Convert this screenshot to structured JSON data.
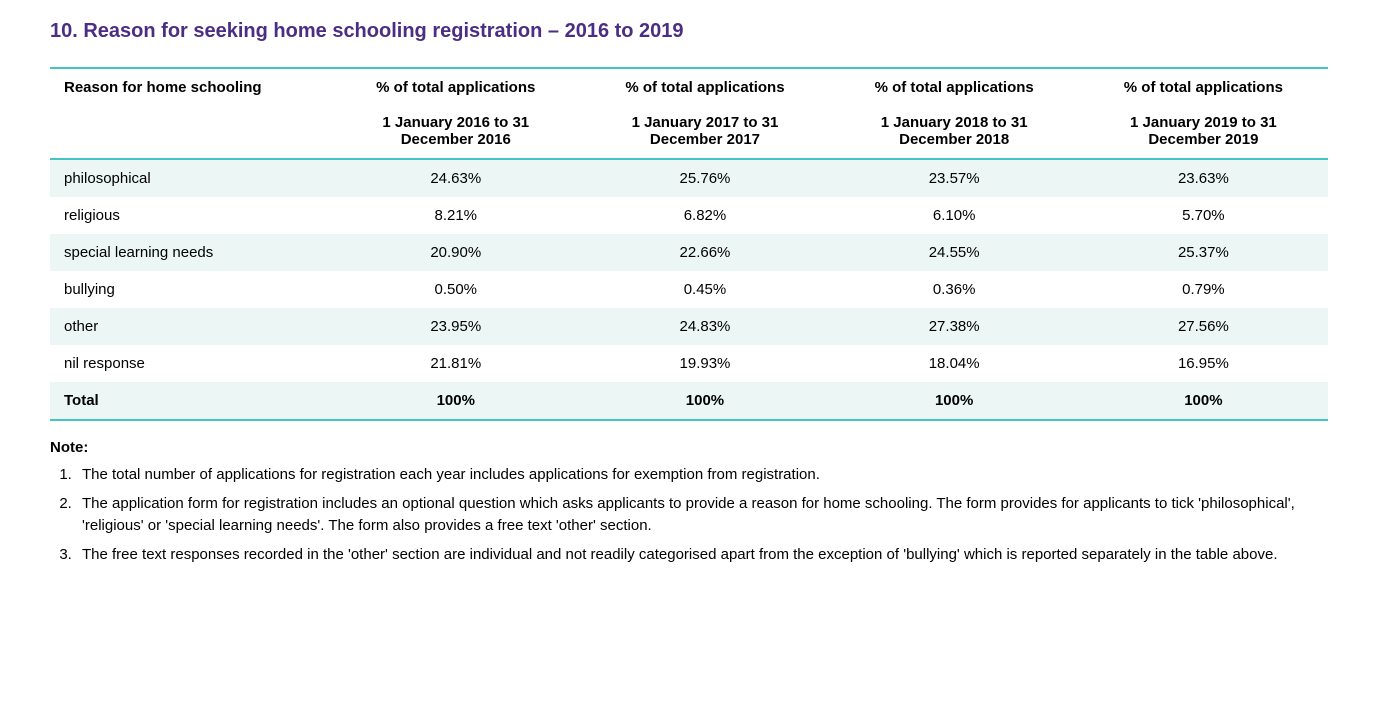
{
  "title": "10.  Reason for seeking home schooling registration – 2016 to 2019",
  "colors": {
    "heading": "#4b2e83",
    "table_border": "#46c3c3",
    "row_alt_bg": "#ecf6f5",
    "text": "#000000",
    "background": "#ffffff"
  },
  "table": {
    "type": "table",
    "first_column_header": "Reason for home schooling",
    "columns": [
      {
        "top": "% of total applications",
        "sub": "1 January 2016 to 31 December 2016"
      },
      {
        "top": "% of total applications",
        "sub": "1 January 2017 to 31 December 2017"
      },
      {
        "top": "% of total applications",
        "sub": "1 January 2018 to 31 December 2018"
      },
      {
        "top": "% of total applications",
        "sub": "1 January 2019 to 31 December 2019"
      }
    ],
    "rows": [
      {
        "label": "philosophical",
        "values": [
          "24.63%",
          "25.76%",
          "23.57%",
          "23.63%"
        ],
        "alt": true
      },
      {
        "label": "religious",
        "values": [
          "8.21%",
          "6.82%",
          "6.10%",
          "5.70%"
        ],
        "alt": false
      },
      {
        "label": "special learning needs",
        "values": [
          "20.90%",
          "22.66%",
          "24.55%",
          "25.37%"
        ],
        "alt": true
      },
      {
        "label": "bullying",
        "values": [
          "0.50%",
          "0.45%",
          "0.36%",
          "0.79%"
        ],
        "alt": false
      },
      {
        "label": "other",
        "values": [
          "23.95%",
          "24.83%",
          "27.38%",
          "27.56%"
        ],
        "alt": true
      },
      {
        "label": "nil response",
        "values": [
          "21.81%",
          "19.93%",
          "18.04%",
          "16.95%"
        ],
        "alt": false
      }
    ],
    "total_row": {
      "label": "Total",
      "values": [
        "100%",
        "100%",
        "100%",
        "100%"
      ],
      "alt": true
    },
    "column_widths": [
      "22%",
      "19.5%",
      "19.5%",
      "19.5%",
      "19.5%"
    ]
  },
  "notes": {
    "heading": "Note:",
    "items": [
      "The total number of applications for registration each year includes applications for exemption from registration.",
      "The application form for registration includes an optional question which asks applicants to provide a reason for home schooling. The form provides for applicants to tick 'philosophical', 'religious' or 'special learning needs'. The form also provides a free text 'other' section.",
      "The free text responses recorded in the 'other' section are individual and not readily categorised apart from the exception of 'bullying' which is reported separately in the table above."
    ]
  }
}
